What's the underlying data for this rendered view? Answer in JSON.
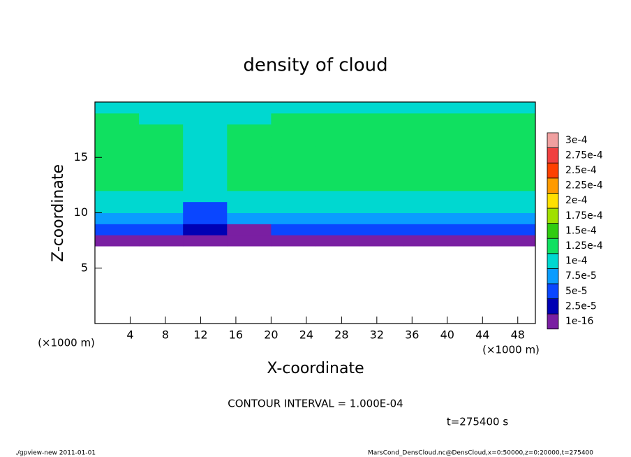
{
  "chart_data": {
    "type": "heatmap",
    "title": "density of cloud",
    "x_label": "X-coordinate",
    "y_label": "Z-coordinate",
    "x_unit": "(×1000 m)",
    "y_unit": "(×1000 m)",
    "xlim": [
      0,
      50
    ],
    "ylim": [
      0,
      20
    ],
    "xticks": [
      4,
      8,
      12,
      16,
      20,
      24,
      28,
      32,
      36,
      40,
      44,
      48
    ],
    "yticks": [
      5,
      10,
      15
    ],
    "xbins": [
      0,
      5,
      10,
      15,
      20,
      25,
      30,
      35,
      40,
      45,
      50
    ],
    "zbins": [
      7,
      8,
      9,
      10,
      11,
      12,
      13,
      14,
      15,
      16,
      17,
      18,
      19,
      20
    ],
    "values": [
      [
        1e-06,
        1e-06,
        1e-06,
        1e-06,
        1e-06,
        1e-06,
        1e-06,
        1e-06,
        1e-06,
        1e-06
      ],
      [
        5e-05,
        5e-05,
        3e-05,
        2e-05,
        5e-05,
        5e-05,
        5e-05,
        5e-05,
        5e-05,
        5e-05
      ],
      [
        8e-05,
        8e-05,
        6e-05,
        8e-05,
        8e-05,
        8e-05,
        8e-05,
        8e-05,
        8e-05,
        8e-05
      ],
      [
        0.0001,
        0.0001,
        7e-05,
        0.0001,
        0.0001,
        0.0001,
        0.0001,
        0.0001,
        0.0001,
        0.0001
      ],
      [
        0.00012,
        0.00012,
        0.0001,
        0.00012,
        0.00012,
        0.00012,
        0.00012,
        0.00012,
        0.00012,
        0.00012
      ],
      [
        0.00013,
        0.00013,
        0.00011,
        0.00013,
        0.00013,
        0.00013,
        0.00013,
        0.00013,
        0.00013,
        0.00013
      ],
      [
        0.00013,
        0.00013,
        0.00011,
        0.00013,
        0.00013,
        0.00013,
        0.00013,
        0.00013,
        0.00013,
        0.00013
      ],
      [
        0.00013,
        0.00013,
        0.00011,
        0.00013,
        0.00014,
        0.00014,
        0.00014,
        0.00014,
        0.00013,
        0.00013
      ],
      [
        0.00013,
        0.00013,
        0.00011,
        0.00013,
        0.00014,
        0.00014,
        0.00014,
        0.00014,
        0.00013,
        0.00013
      ],
      [
        0.00013,
        0.00013,
        0.00011,
        0.00013,
        0.00014,
        0.00014,
        0.00014,
        0.00014,
        0.00013,
        0.00013
      ],
      [
        0.00013,
        0.00013,
        0.0001,
        0.00013,
        0.00013,
        0.00013,
        0.00013,
        0.00013,
        0.00013,
        0.00013
      ],
      [
        0.00013,
        0.00012,
        0.0001,
        0.00012,
        0.00013,
        0.00013,
        0.00013,
        0.00013,
        0.00013,
        0.00013
      ],
      [
        0.00012,
        0.00012,
        0.0001,
        0.00012,
        0.00012,
        0.00012,
        0.00012,
        0.00012,
        0.00012,
        0.00012
      ]
    ],
    "levels": [
      {
        "value": 1e-16,
        "label": "1e-16"
      },
      {
        "value": 2.5e-05,
        "label": "2.5e-5"
      },
      {
        "value": 5e-05,
        "label": "5e-5"
      },
      {
        "value": 7.5e-05,
        "label": "7.5e-5"
      },
      {
        "value": 0.0001,
        "label": "1e-4"
      },
      {
        "value": 0.000125,
        "label": "1.25e-4"
      },
      {
        "value": 0.00015,
        "label": "1.5e-4"
      },
      {
        "value": 0.000175,
        "label": "1.75e-4"
      },
      {
        "value": 0.0002,
        "label": "2e-4"
      },
      {
        "value": 0.000225,
        "label": "2.25e-4"
      },
      {
        "value": 0.00025,
        "label": "2.5e-4"
      },
      {
        "value": 0.000275,
        "label": "2.75e-4"
      },
      {
        "value": 0.0003,
        "label": "3e-4"
      }
    ],
    "level_colors": [
      "#7a1fa2",
      "#0000b4",
      "#0a46ff",
      "#0a9cff",
      "#00d8d0",
      "#10e060",
      "#30cc10",
      "#a0e000",
      "#ffe000",
      "#ff9a00",
      "#ff4000",
      "#f04040",
      "#f0a0a0"
    ],
    "contour_note": "CONTOUR INTERVAL = 1.000E-04",
    "time_note": "t=275400 s",
    "footer_left": "./gpview-new  2011-01-01",
    "footer_right": "MarsCond_DensCloud.nc@DensCloud,x=0:50000,z=0:20000,t=275400"
  }
}
